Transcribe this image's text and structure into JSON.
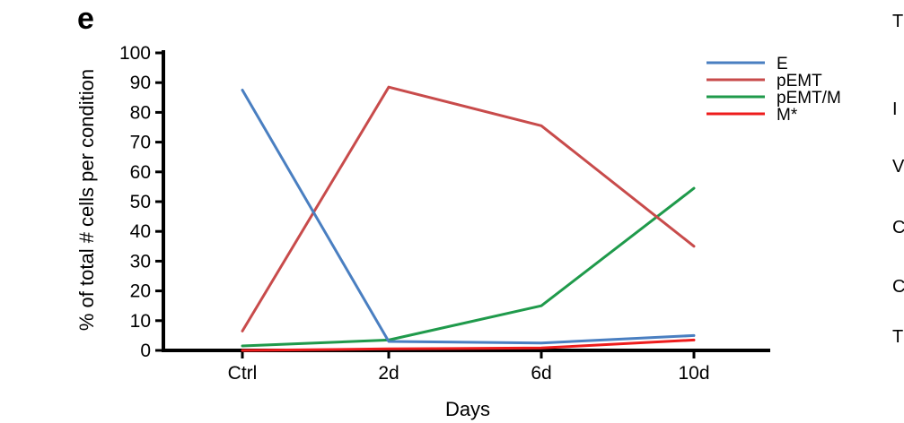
{
  "panel_label": "e",
  "edge_glyphs": [
    "T",
    "I",
    "V",
    "C",
    "C",
    "T"
  ],
  "chart_data": {
    "type": "line",
    "xlabel": "Days",
    "ylabel": "% of total # cells per condition",
    "categories": [
      "Ctrl",
      "2d",
      "6d",
      "10d"
    ],
    "ylim": [
      0,
      100
    ],
    "yticks": [
      0,
      10,
      20,
      30,
      40,
      50,
      60,
      70,
      80,
      90,
      100
    ],
    "grid": false,
    "legend_position": "top-right",
    "series": [
      {
        "name": "E",
        "color": "#4a7fc1",
        "values": [
          87.5,
          3,
          2.5,
          5
        ]
      },
      {
        "name": "pEMT",
        "color": "#c84b4b",
        "values": [
          6.5,
          88.5,
          75.5,
          35
        ]
      },
      {
        "name": "pEMT/M",
        "color": "#1f9a4b",
        "values": [
          1.5,
          3.5,
          15,
          54.5
        ]
      },
      {
        "name": "M*",
        "color": "#ee1c1c",
        "values": [
          0,
          0.5,
          0.8,
          3.5
        ]
      }
    ]
  }
}
